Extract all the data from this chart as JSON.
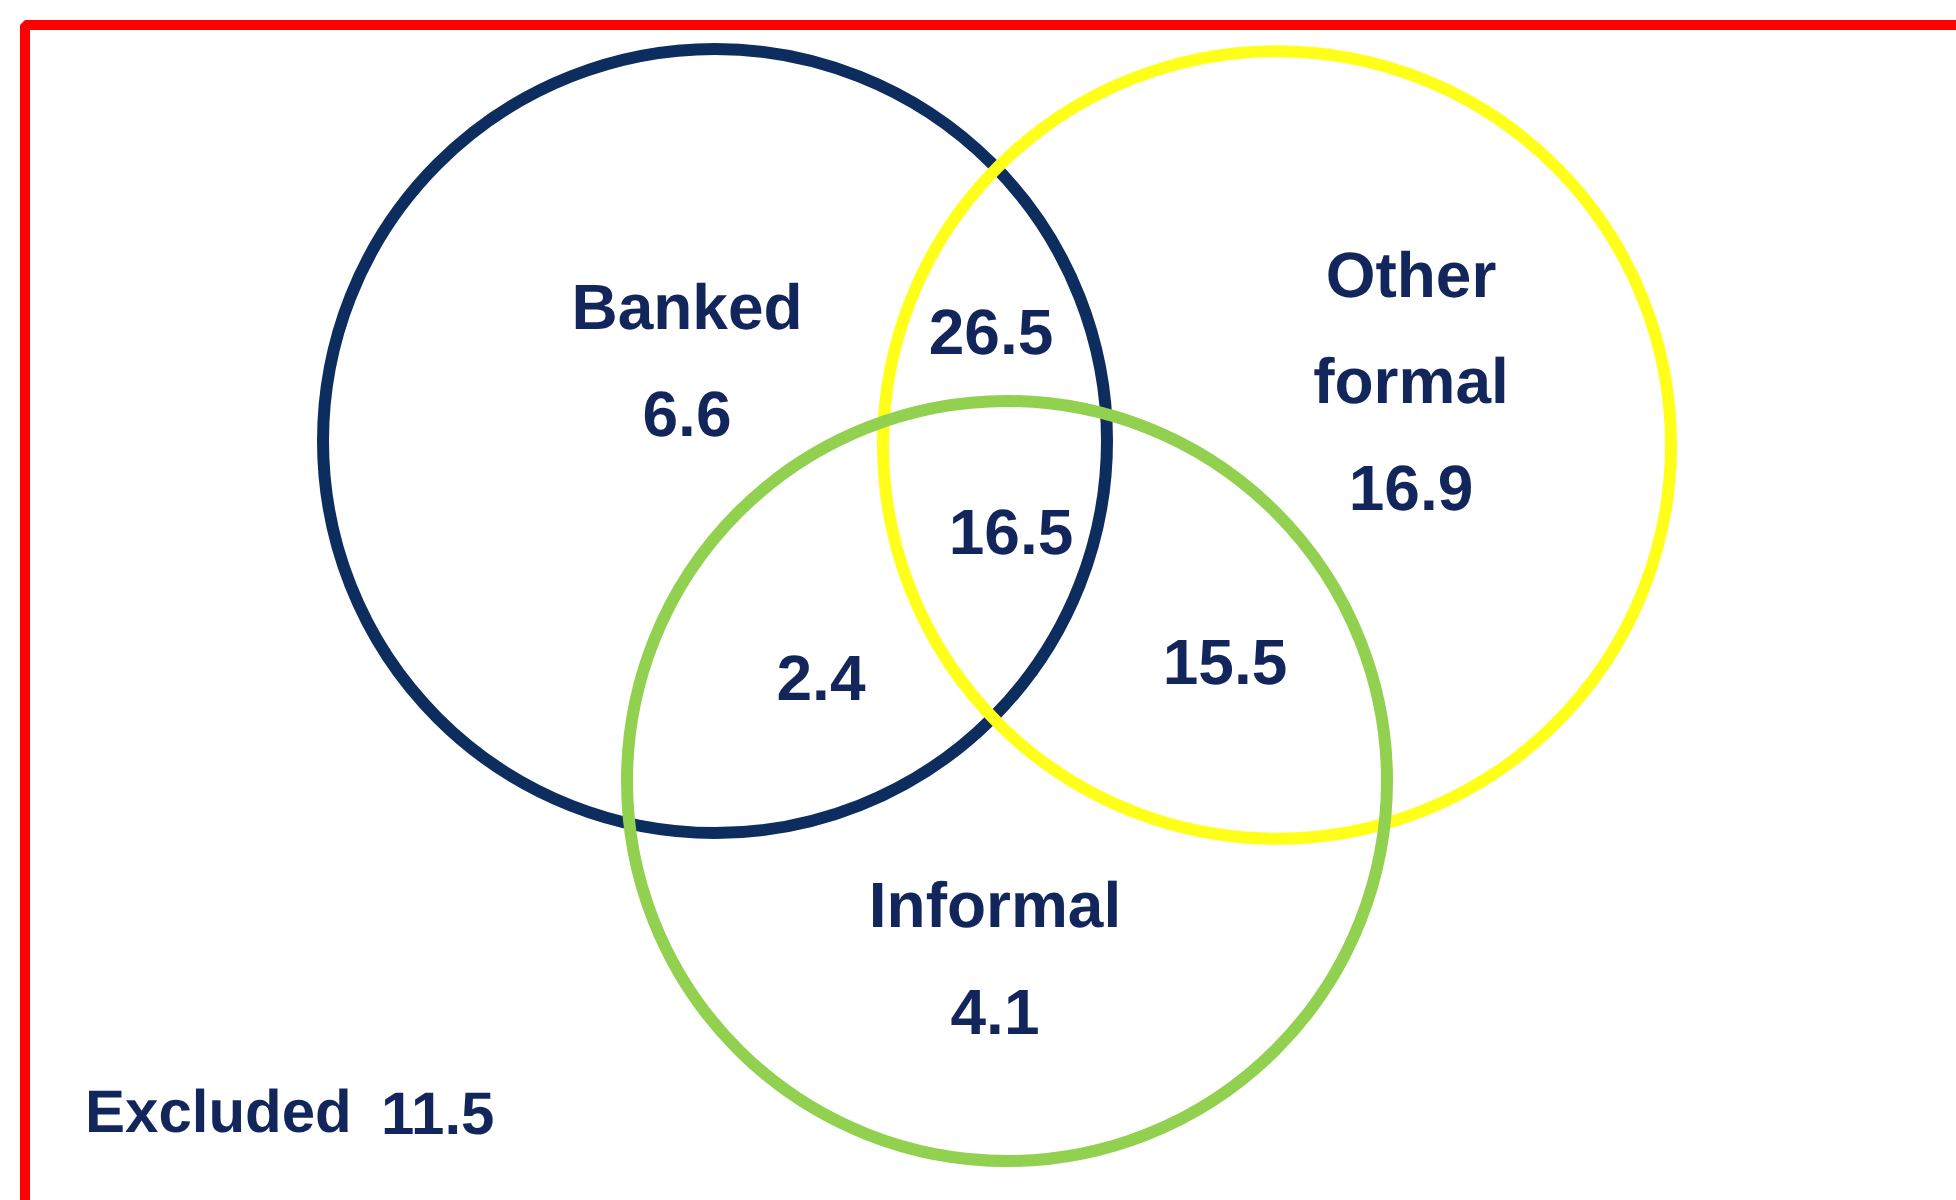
{
  "chart_data": {
    "type": "other",
    "categories": [
      "Banked",
      "Other formal",
      "Informal",
      "Excluded"
    ],
    "values": [
      6.6,
      16.9,
      4.1,
      11.5
    ],
    "colors": [
      "#0c2d5e",
      "#ffff1a",
      "#92d050",
      "#13265c"
    ],
    "data_labels": true,
    "annotations": [
      "26.5",
      "16.5",
      "2.4",
      "15.5"
    ]
  }
}
